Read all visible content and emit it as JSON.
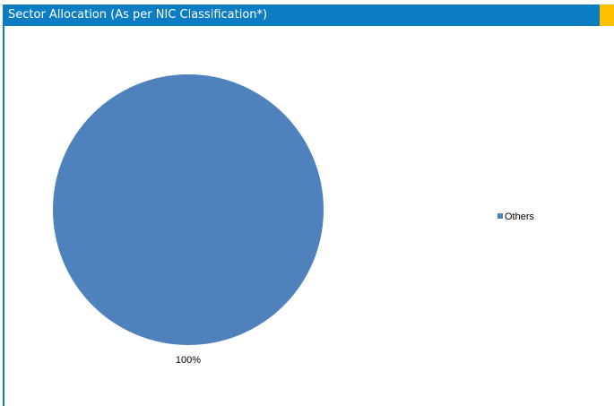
{
  "header": {
    "title": "Sector Allocation (As per NIC Classification*)"
  },
  "colors": {
    "header_bg": "#0c7cc3",
    "header_accent": "#ffc000",
    "series_others": "#4f81bd"
  },
  "chart_data": {
    "type": "pie",
    "title": "",
    "categories": [
      "Others"
    ],
    "values": [
      100
    ],
    "data_labels": [
      "100%"
    ],
    "legend": {
      "position": "right",
      "entries": [
        "Others"
      ]
    }
  }
}
